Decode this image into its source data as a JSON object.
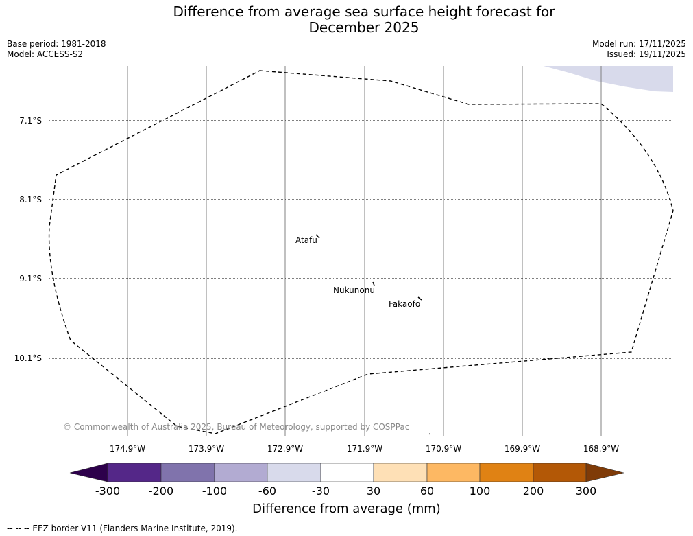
{
  "title_line1": "Difference from average sea surface height forecast for",
  "title_line2": "December 2025",
  "base_period": "Base period: 1981-2018",
  "model": "Model: ACCESS-S2",
  "model_run": "Model run: 17/11/2025",
  "issued": "Issued: 19/11/2025",
  "lat_labels": [
    "7.1°S",
    "8.1°S",
    "9.1°S",
    "10.1°S"
  ],
  "lon_labels": [
    "174.9°W",
    "173.9°W",
    "172.9°W",
    "171.9°W",
    "170.9°W",
    "169.9°W",
    "168.9°W"
  ],
  "places": {
    "atafu": "Atafu",
    "nukunonu": "Nukunonu",
    "fakaofo": "Fakaofo"
  },
  "copyright": "© Commonwealth of Australia 2025, Bureau of Meteorology, supported by COSPPac",
  "colorbar": {
    "ticks": [
      "-300",
      "-200",
      "-100",
      "-60",
      "-30",
      "30",
      "60",
      "100",
      "200",
      "300"
    ],
    "colors": [
      "#2d004b",
      "#542788",
      "#8073ac",
      "#b2abd2",
      "#d8daeb",
      "#ffffff",
      "#fee0b6",
      "#fdb863",
      "#e08214",
      "#b35806",
      "#7f3b08"
    ],
    "label": "Difference from average (mm)"
  },
  "legend": "-- -- -- EEZ border V11 (Flanders Marine Institute, 2019)."
}
